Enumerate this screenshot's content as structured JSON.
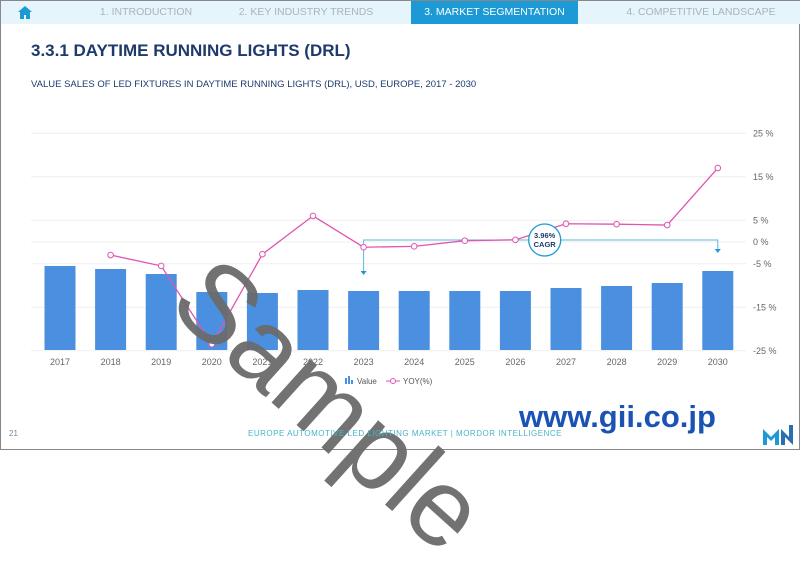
{
  "nav": {
    "tabs": [
      "1. INTRODUCTION",
      "2. KEY INDUSTRY TRENDS",
      "3. MARKET SEGMENTATION",
      "4. COMPETITIVE LANDSCAPE"
    ],
    "active": 2
  },
  "title": "3.3.1 DAYTIME RUNNING LIGHTS (DRL)",
  "subtitle": "VALUE SALES OF LED FIXTURES IN DAYTIME RUNNING LIGHTS (DRL), USD, EUROPE, 2017 - 2030",
  "chart_data": {
    "type": "bar",
    "categories": [
      "2017",
      "2018",
      "2019",
      "2020",
      "2021",
      "2022",
      "2023",
      "2024",
      "2025",
      "2026",
      "2027",
      "2028",
      "2029",
      "2030"
    ],
    "series": [
      {
        "name": "Value",
        "type": "bar",
        "color": "#4a8fe0",
        "values": [
          84,
          81,
          76,
          58,
          57,
          60,
          59,
          59,
          59,
          59,
          62,
          64,
          67,
          79
        ]
      },
      {
        "name": "YOY(%)",
        "type": "line",
        "color": "#e056b0",
        "values": [
          null,
          -3,
          -5.5,
          -23.5,
          -2.8,
          6,
          -1.2,
          -1,
          0.3,
          0.5,
          4.2,
          4.1,
          3.9,
          17
        ]
      }
    ],
    "y2_ticks": [
      "25 %",
      "15 %",
      "5 %",
      "0 %",
      "-5 %",
      "-15 %",
      "-25 %"
    ],
    "y2_tick_values": [
      25,
      15,
      5,
      0,
      -5,
      -15,
      -25
    ],
    "ylim": [
      -25,
      25
    ],
    "annotation": {
      "value": "3.96%",
      "label": "CAGR",
      "from": "2023",
      "to": "2030"
    },
    "legend": "bottom-center"
  },
  "footer": "EUROPE AUTOMOTIVE LED LIGHTING MARKET | MORDOR INTELLIGENCE",
  "page_number": "21",
  "watermark": "Sample",
  "site": "www.gii.co.jp"
}
